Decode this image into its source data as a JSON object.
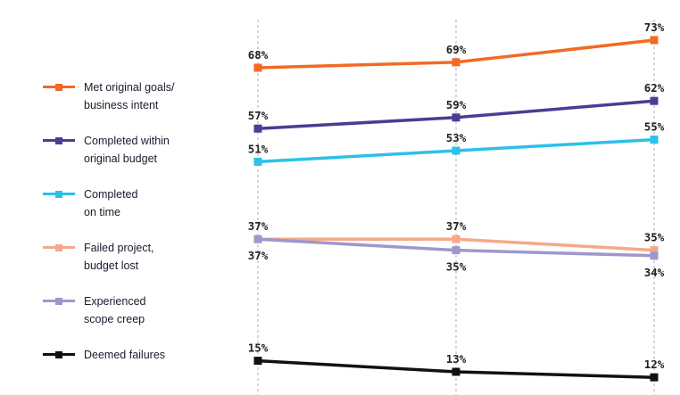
{
  "chart_data": {
    "type": "line",
    "categories": [
      "",
      "",
      ""
    ],
    "series": [
      {
        "name": "Met original goals/ business intent",
        "label_lines": [
          "Met original goals/",
          "business intent"
        ],
        "color": "#f26a24",
        "values": [
          68,
          69,
          73
        ],
        "labels": [
          "68%",
          "69%",
          "73%"
        ]
      },
      {
        "name": "Completed within original budget",
        "label_lines": [
          "Completed within",
          "original budget"
        ],
        "color": "#4b3c94",
        "values": [
          57,
          59,
          62
        ],
        "labels": [
          "57%",
          "59%",
          "62%"
        ]
      },
      {
        "name": "Completed on time",
        "label_lines": [
          "Completed",
          "on time"
        ],
        "color": "#2cc0ea",
        "values": [
          51,
          53,
          55
        ],
        "labels": [
          "51%",
          "53%",
          "55%"
        ]
      },
      {
        "name": "Failed project, budget lost",
        "label_lines": [
          "Failed project,",
          "budget lost"
        ],
        "color": "#f5a98a",
        "values": [
          37,
          37,
          35
        ],
        "labels": [
          "37%",
          "37%",
          "35%"
        ]
      },
      {
        "name": "Experienced scope creep",
        "label_lines": [
          "Experienced",
          "scope creep"
        ],
        "color": "#9f97cc",
        "values": [
          37,
          35,
          34
        ],
        "labels": [
          "37%",
          "35%",
          "34%"
        ]
      },
      {
        "name": "Deemed failures",
        "label_lines": [
          "Deemed failures"
        ],
        "color": "#111111",
        "values": [
          15,
          13,
          12
        ],
        "labels": [
          "15%",
          "13%",
          "12%"
        ]
      }
    ],
    "ylabel": "",
    "xlabel": "",
    "unit": "%",
    "grid": "vertical dashed at each category",
    "legend": "left"
  }
}
